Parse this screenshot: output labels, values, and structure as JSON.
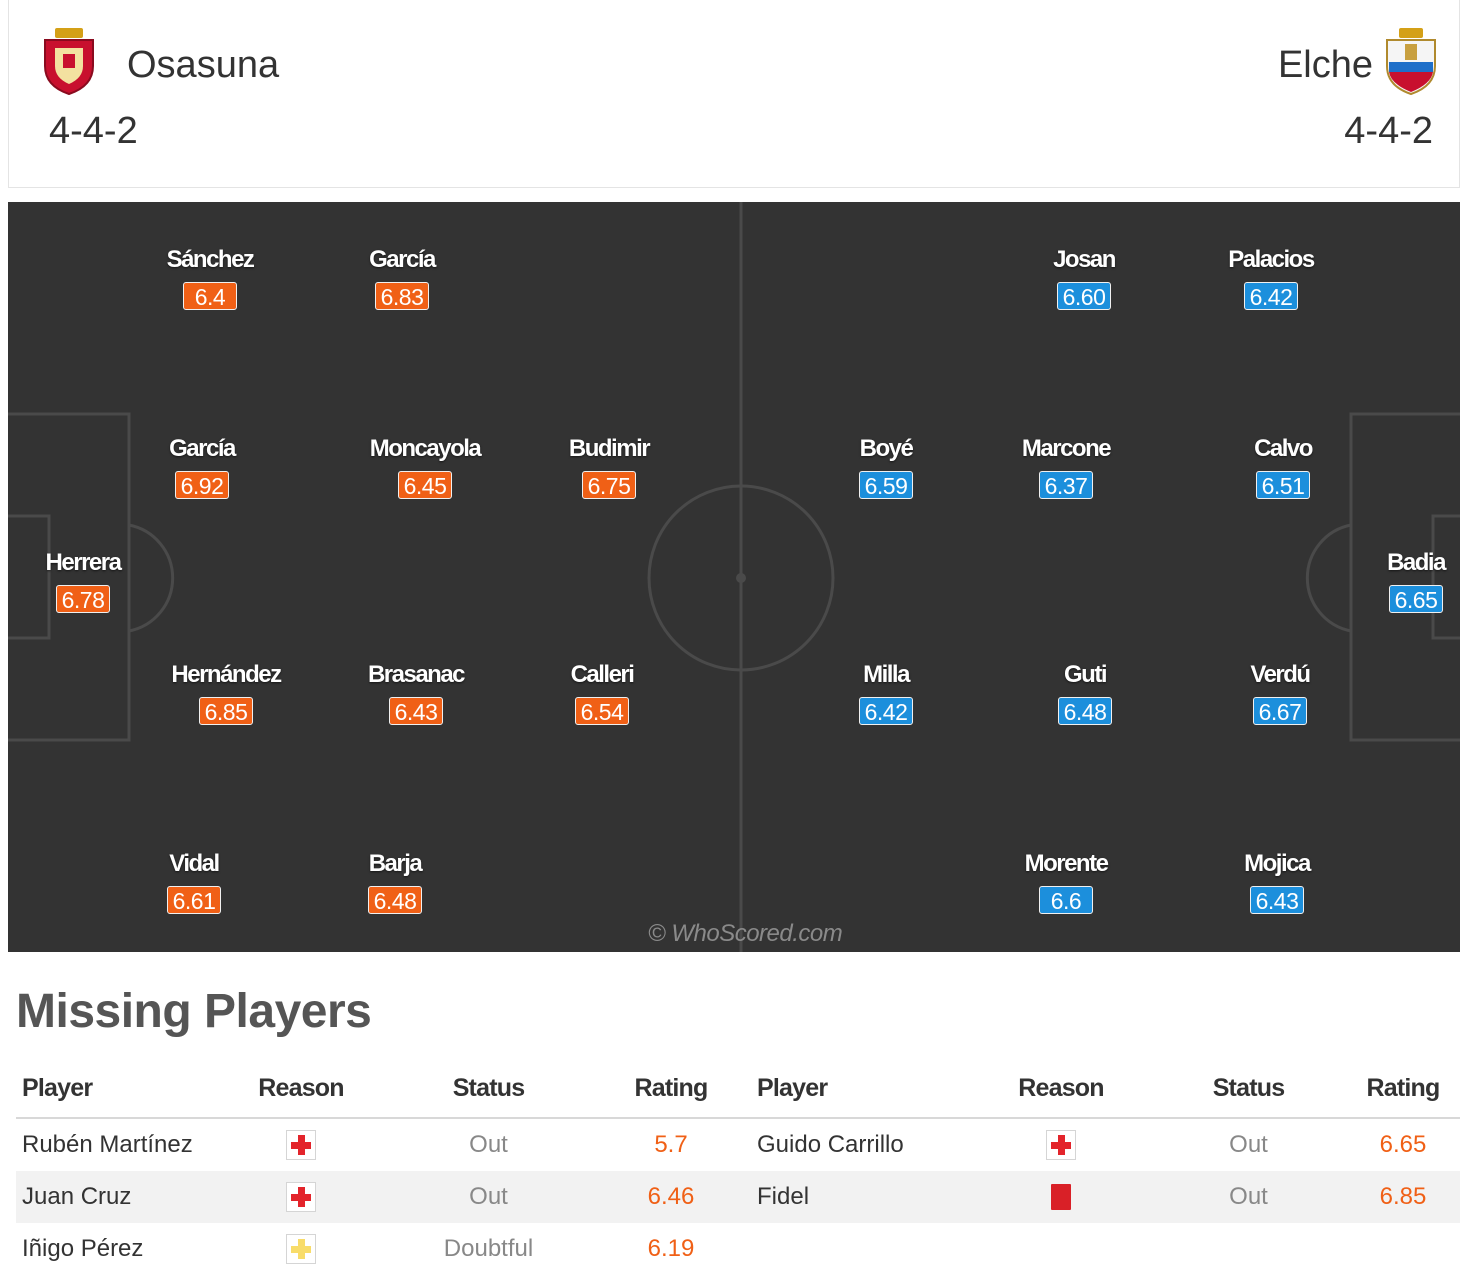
{
  "home": {
    "name": "Osasuna",
    "formation": "4-4-2",
    "players": [
      {
        "name": "Sánchez",
        "rating": "6.4"
      },
      {
        "name": "García",
        "rating": "6.83"
      },
      {
        "name": "García",
        "rating": "6.92"
      },
      {
        "name": "Moncayola",
        "rating": "6.45"
      },
      {
        "name": "Budimir",
        "rating": "6.75"
      },
      {
        "name": "Herrera",
        "rating": "6.78"
      },
      {
        "name": "Hernández",
        "rating": "6.85"
      },
      {
        "name": "Brasanac",
        "rating": "6.43"
      },
      {
        "name": "Calleri",
        "rating": "6.54"
      },
      {
        "name": "Vidal",
        "rating": "6.61"
      },
      {
        "name": "Barja",
        "rating": "6.48"
      }
    ]
  },
  "away": {
    "name": "Elche",
    "formation": "4-4-2",
    "players": [
      {
        "name": "Josan",
        "rating": "6.60"
      },
      {
        "name": "Palacios",
        "rating": "6.42"
      },
      {
        "name": "Boyé",
        "rating": "6.59"
      },
      {
        "name": "Marcone",
        "rating": "6.37"
      },
      {
        "name": "Calvo",
        "rating": "6.51"
      },
      {
        "name": "Badia",
        "rating": "6.65"
      },
      {
        "name": "Milla",
        "rating": "6.42"
      },
      {
        "name": "Guti",
        "rating": "6.48"
      },
      {
        "name": "Verdú",
        "rating": "6.67"
      },
      {
        "name": "Morente",
        "rating": "6.6"
      },
      {
        "name": "Mojica",
        "rating": "6.43"
      }
    ]
  },
  "watermark": "© WhoScored.com",
  "missing": {
    "title": "Missing Players",
    "columns": [
      "Player",
      "Reason",
      "Status",
      "Rating"
    ],
    "home": [
      {
        "player": "Rubén Martínez",
        "reason_icon": "injury-red-cross-icon",
        "status": "Out",
        "rating": "5.7"
      },
      {
        "player": "Juan Cruz",
        "reason_icon": "injury-red-cross-icon",
        "status": "Out",
        "rating": "6.46"
      },
      {
        "player": "Iñigo Pérez",
        "reason_icon": "doubtful-yellow-cross-icon",
        "status": "Doubtful",
        "rating": "6.19"
      }
    ],
    "away": [
      {
        "player": "Guido Carrillo",
        "reason_icon": "injury-red-cross-icon",
        "status": "Out",
        "rating": "6.65"
      },
      {
        "player": "Fidel",
        "reason_icon": "red-card-icon",
        "status": "Out",
        "rating": "6.85"
      }
    ]
  },
  "colors": {
    "home_rating_bg": "#f06016",
    "away_rating_bg": "#1c8fdc",
    "pitch_bg": "#333333",
    "missing_rating": "#f06016"
  }
}
